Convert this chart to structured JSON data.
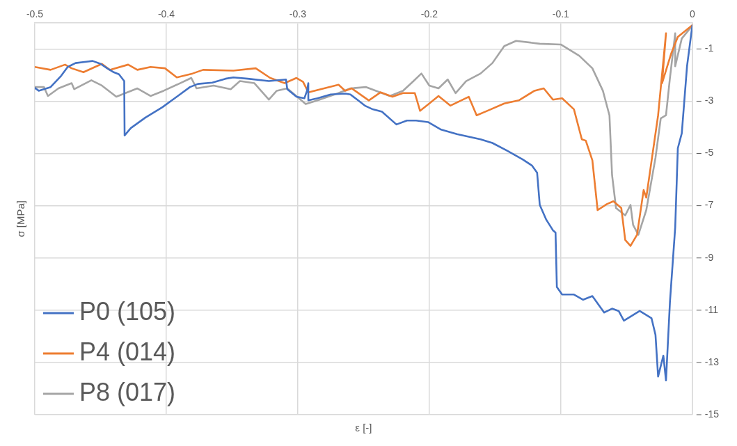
{
  "chart_data": {
    "type": "line",
    "xlabel": "ε [-]",
    "ylabel": "σ [MPa]",
    "xlim": [
      -0.5,
      0
    ],
    "ylim": [
      -15,
      0
    ],
    "xticks": [
      -0.5,
      -0.4,
      -0.3,
      -0.2,
      -0.1,
      0
    ],
    "yticks": [
      -15,
      -13,
      -11,
      -9,
      -7,
      -5,
      -3,
      -1
    ],
    "grid": true,
    "legend": "bottom left",
    "line_style": "solid",
    "marker": "none",
    "series": [
      {
        "name": "P0 (105)",
        "color": "#4472c4",
        "x": [
          -0.5,
          -0.497,
          -0.488,
          -0.48,
          -0.475,
          -0.469,
          -0.461,
          -0.456,
          -0.45,
          -0.445,
          -0.44,
          -0.436,
          -0.432,
          -0.4317,
          -0.427,
          -0.416,
          -0.403,
          -0.392,
          -0.382,
          -0.376,
          -0.365,
          -0.355,
          -0.349,
          -0.338,
          -0.322,
          -0.309,
          -0.308,
          -0.301,
          -0.295,
          -0.293,
          -0.292,
          -0.292,
          -0.285,
          -0.275,
          -0.264,
          -0.26,
          -0.249,
          -0.243,
          -0.236,
          -0.225,
          -0.217,
          -0.21,
          -0.201,
          -0.191,
          -0.179,
          -0.161,
          -0.152,
          -0.141,
          -0.129,
          -0.122,
          -0.118,
          -0.116,
          -0.111,
          -0.106,
          -0.104,
          -0.103,
          -0.099,
          -0.09,
          -0.083,
          -0.076,
          -0.067,
          -0.061,
          -0.056,
          -0.052,
          -0.04,
          -0.031,
          -0.028,
          -0.026,
          -0.022,
          -0.02,
          -0.017,
          -0.013,
          -0.011,
          -0.008,
          -0.004,
          0
        ],
        "values": [
          -2.49,
          -2.6,
          -2.46,
          -2.03,
          -1.69,
          -1.54,
          -1.49,
          -1.46,
          -1.57,
          -1.74,
          -1.89,
          -1.97,
          -2.23,
          -4.31,
          -4.03,
          -3.63,
          -3.23,
          -2.83,
          -2.46,
          -2.34,
          -2.29,
          -2.14,
          -2.09,
          -2.14,
          -2.23,
          -2.17,
          -2.54,
          -2.83,
          -2.89,
          -2.6,
          -2.31,
          -2.97,
          -2.89,
          -2.74,
          -2.71,
          -2.74,
          -3.17,
          -3.31,
          -3.4,
          -3.89,
          -3.74,
          -3.74,
          -3.8,
          -4.09,
          -4.26,
          -4.46,
          -4.6,
          -4.89,
          -5.23,
          -5.46,
          -5.74,
          -6.97,
          -7.54,
          -7.94,
          -8.03,
          -10.11,
          -10.4,
          -10.4,
          -10.6,
          -10.46,
          -11.09,
          -10.94,
          -11.03,
          -11.4,
          -11.03,
          -11.31,
          -11.94,
          -13.54,
          -12.74,
          -13.69,
          -10.69,
          -7.83,
          -4.8,
          -4.23,
          -1.66,
          -0.11
        ]
      },
      {
        "name": "P4 (014)",
        "color": "#ed7d31",
        "x": [
          -0.5,
          -0.488,
          -0.477,
          -0.472,
          -0.463,
          -0.449,
          -0.443,
          -0.429,
          -0.422,
          -0.412,
          -0.401,
          -0.392,
          -0.38,
          -0.372,
          -0.349,
          -0.332,
          -0.321,
          -0.31,
          -0.301,
          -0.296,
          -0.292,
          -0.28,
          -0.269,
          -0.264,
          -0.259,
          -0.246,
          -0.237,
          -0.228,
          -0.22,
          -0.211,
          -0.207,
          -0.2,
          -0.193,
          -0.184,
          -0.17,
          -0.164,
          -0.156,
          -0.143,
          -0.132,
          -0.12,
          -0.113,
          -0.106,
          -0.099,
          -0.09,
          -0.084,
          -0.081,
          -0.076,
          -0.072,
          -0.065,
          -0.06,
          -0.054,
          -0.051,
          -0.047,
          -0.042,
          -0.037,
          -0.035,
          -0.026,
          -0.02,
          -0.023,
          -0.016,
          -0.011,
          0
        ],
        "values": [
          -1.69,
          -1.8,
          -1.6,
          -1.74,
          -1.89,
          -1.57,
          -1.8,
          -1.6,
          -1.8,
          -1.69,
          -1.74,
          -2.09,
          -1.94,
          -1.8,
          -1.83,
          -1.74,
          -2.11,
          -2.31,
          -2.11,
          -2.26,
          -2.66,
          -2.51,
          -2.37,
          -2.6,
          -2.51,
          -2.97,
          -2.66,
          -2.83,
          -2.69,
          -2.69,
          -3.37,
          -3.09,
          -2.8,
          -3.17,
          -2.83,
          -3.54,
          -3.37,
          -3.09,
          -2.97,
          -2.6,
          -2.51,
          -2.94,
          -2.89,
          -3.31,
          -4.46,
          -4.51,
          -5.26,
          -7.17,
          -6.94,
          -6.83,
          -7.09,
          -8.31,
          -8.54,
          -8.11,
          -6.4,
          -6.69,
          -3.54,
          -0.4,
          -2.31,
          -1.17,
          -0.54,
          -0.09
        ]
      },
      {
        "name": "P8 (017)",
        "color": "#a5a5a5",
        "x": [
          -0.5,
          -0.493,
          -0.49,
          -0.482,
          -0.472,
          -0.47,
          -0.457,
          -0.449,
          -0.438,
          -0.431,
          -0.422,
          -0.412,
          -0.402,
          -0.392,
          -0.381,
          -0.377,
          -0.364,
          -0.351,
          -0.344,
          -0.333,
          -0.322,
          -0.316,
          -0.308,
          -0.294,
          -0.285,
          -0.269,
          -0.26,
          -0.248,
          -0.23,
          -0.22,
          -0.212,
          -0.206,
          -0.2,
          -0.193,
          -0.186,
          -0.18,
          -0.172,
          -0.161,
          -0.152,
          -0.143,
          -0.134,
          -0.116,
          -0.1,
          -0.086,
          -0.076,
          -0.068,
          -0.063,
          -0.061,
          -0.058,
          -0.051,
          -0.047,
          -0.045,
          -0.041,
          -0.035,
          -0.028,
          -0.024,
          -0.02,
          -0.017,
          -0.013,
          -0.013,
          -0.008,
          0
        ],
        "values": [
          -2.46,
          -2.46,
          -2.8,
          -2.51,
          -2.31,
          -2.54,
          -2.2,
          -2.4,
          -2.83,
          -2.69,
          -2.51,
          -2.8,
          -2.6,
          -2.37,
          -2.11,
          -2.51,
          -2.4,
          -2.54,
          -2.23,
          -2.31,
          -2.94,
          -2.6,
          -2.51,
          -3.11,
          -2.97,
          -2.69,
          -2.51,
          -2.46,
          -2.8,
          -2.6,
          -2.23,
          -1.94,
          -2.4,
          -2.51,
          -2.17,
          -2.69,
          -2.23,
          -1.94,
          -1.54,
          -0.89,
          -0.69,
          -0.8,
          -0.83,
          -1.26,
          -1.74,
          -2.6,
          -3.54,
          -5.83,
          -7.09,
          -7.37,
          -6.97,
          -7.74,
          -8.11,
          -7.17,
          -5.17,
          -3.66,
          -3.54,
          -2.11,
          -0.4,
          -1.66,
          -0.6,
          -0.11
        ]
      }
    ]
  }
}
